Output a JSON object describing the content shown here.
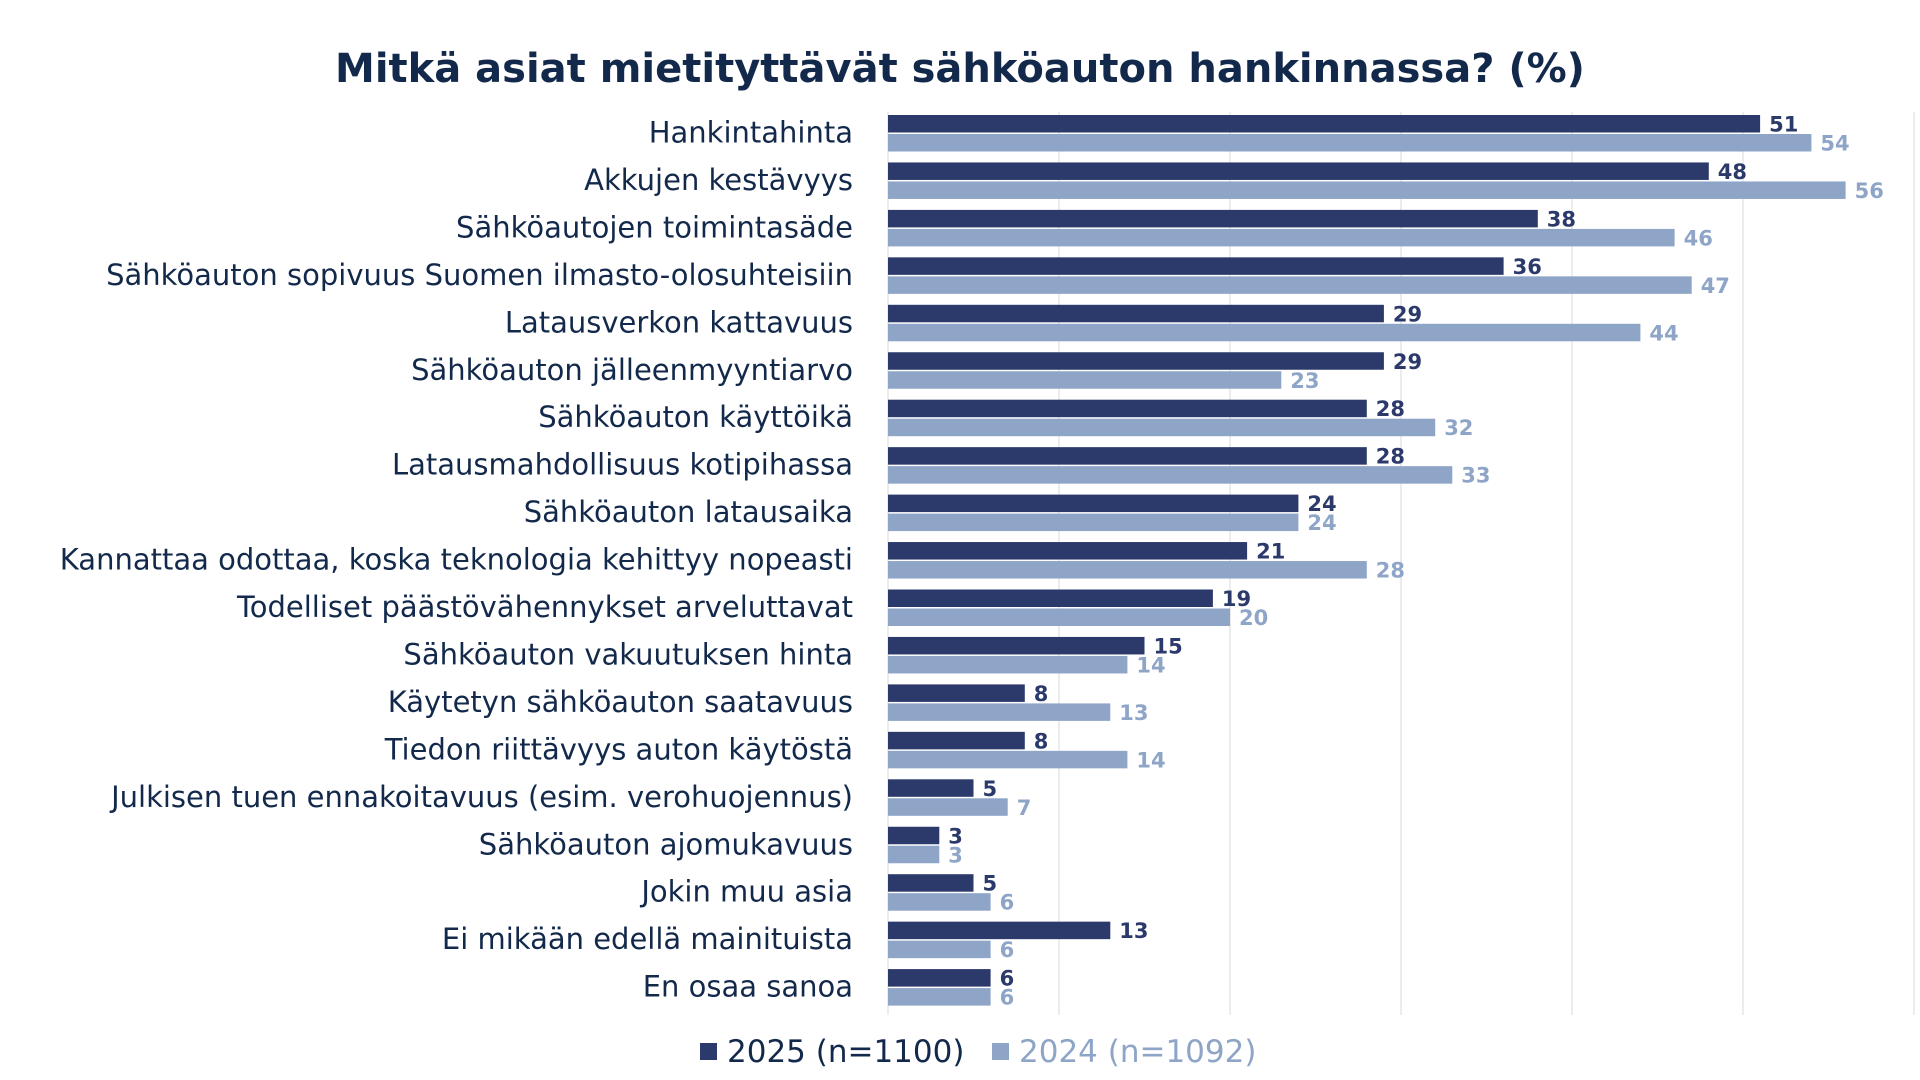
{
  "chart_data": {
    "type": "bar",
    "orientation": "horizontal",
    "title": "Mitkä asiat mietityttävät sähköauton hankinnassa? (%)",
    "categories": [
      "Hankintahinta",
      "Akkujen kestävyys",
      "Sähköautojen toimintasäde",
      "Sähköauton sopivuus Suomen ilmasto-olosuhteisiin",
      "Latausverkon kattavuus",
      "Sähköauton jälleenmyyntiarvo",
      "Sähköauton käyttöikä",
      "Latausmahdollisuus kotipihassa",
      "Sähköauton latausaika",
      "Kannattaa odottaa, koska teknologia kehittyy nopeasti",
      "Todelliset päästövähennykset arveluttavat",
      "Sähköauton vakuutuksen hinta",
      "Käytetyn sähköauton saatavuus",
      "Tiedon riittävyys auton käytöstä",
      "Julkisen tuen ennakoitavuus (esim. verohuojennus)",
      "Sähköauton ajomukavuus",
      "Jokin muu asia",
      "Ei mikään edellä mainituista",
      "En osaa sanoa"
    ],
    "series": [
      {
        "name": "2025 (n=1100)",
        "color": "#2b3a6b",
        "values": [
          51,
          48,
          38,
          36,
          29,
          29,
          28,
          28,
          24,
          21,
          19,
          15,
          8,
          8,
          5,
          3,
          5,
          13,
          6
        ]
      },
      {
        "name": "2024 (n=1092)",
        "color": "#8ea5c8",
        "values": [
          54,
          56,
          46,
          47,
          44,
          23,
          32,
          33,
          24,
          28,
          20,
          14,
          13,
          14,
          7,
          3,
          6,
          6,
          6
        ]
      }
    ],
    "xlim": [
      0,
      60
    ],
    "grid": true,
    "legend_position": "bottom"
  }
}
